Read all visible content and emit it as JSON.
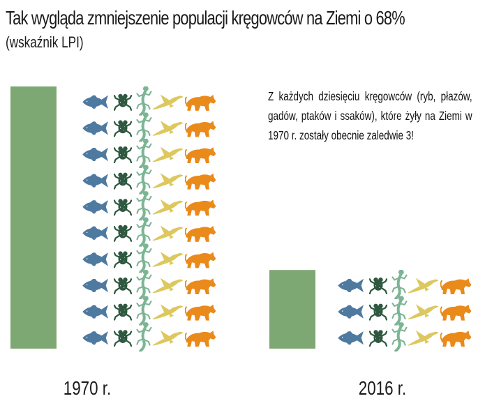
{
  "title": "Tak wygląda zmniejszenie populacji kręgowców na Ziemi o 68%",
  "subtitle": "(wskaźnik LPI)",
  "note": "Z każdych dziesięciu kręgowców (ryb, płazów, gadów, ptaków i ssaków), które żyły na Ziemi w 1970 r. zostały obecnie zaledwie 3!",
  "chart_data": {
    "type": "bar",
    "categories": [
      "1970 r.",
      "2016 r."
    ],
    "values": [
      10,
      3
    ],
    "unit_note": "Z każdych dziesięciu kręgowców",
    "icon_groups": [
      "ryby",
      "płazy",
      "gady",
      "ptaki",
      "ssaki"
    ],
    "icons": [
      "fish-icon",
      "frog-icon",
      "lizard-icon",
      "bird-icon",
      "mammal-icon"
    ],
    "colors": {
      "bar": "#7ea873",
      "fish": "#4e7aa0",
      "frog": "#2f5840",
      "lizard": "#7cb595",
      "bird": "#dcc85e",
      "mammal": "#ea8a1a"
    },
    "grid": false,
    "legend": "none"
  }
}
